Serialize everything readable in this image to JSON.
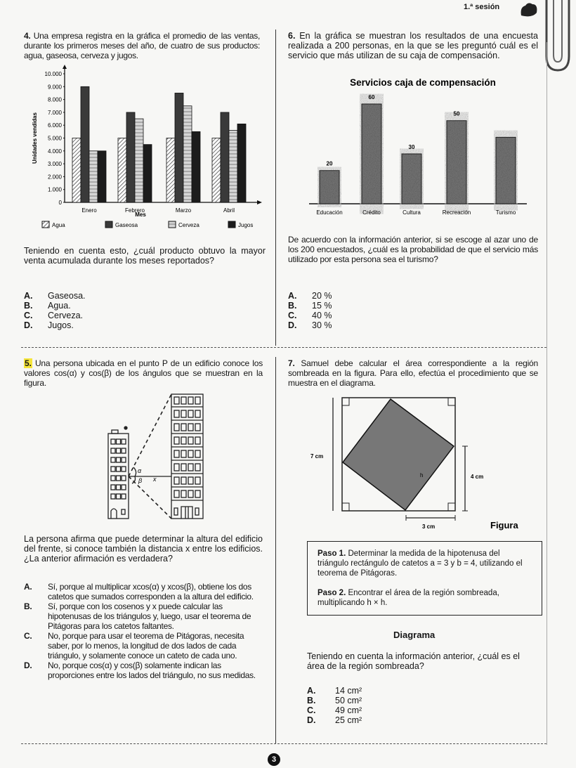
{
  "header": {
    "session": "1.ª sesión",
    "page_number": "3"
  },
  "q4": {
    "number": "4.",
    "stem": "Una empresa registra en la gráfica el promedio de las ventas, durante los primeros meses del año, de cuatro de sus productos: agua, gaseosa, cerveza y jugos.",
    "question": "Teniendo en cuenta esto, ¿cuál producto obtuvo la mayor venta acumulada durante los meses reportados?",
    "options": [
      {
        "letter": "A.",
        "text": "Gaseosa."
      },
      {
        "letter": "B.",
        "text": "Agua."
      },
      {
        "letter": "C.",
        "text": "Cerveza."
      },
      {
        "letter": "D.",
        "text": "Jugos."
      }
    ]
  },
  "q6": {
    "number": "6.",
    "stem": "En la gráfica se muestran los resultados de una encuesta realizada a 200 personas, en la que se les preguntó cuál es el servicio que más utilizan de su caja de compensación.",
    "question": "De acuerdo con la información anterior, si se escoge al azar uno de los 200 encuestados, ¿cuál es la probabilidad de que el servicio más utilizado por esta persona sea el turismo?",
    "options": [
      {
        "letter": "A.",
        "text": "20 %"
      },
      {
        "letter": "B.",
        "text": "15 %"
      },
      {
        "letter": "C.",
        "text": "40 %"
      },
      {
        "letter": "D.",
        "text": "30 %"
      }
    ]
  },
  "q5": {
    "number": "5.",
    "stem": "Una persona ubicada en el punto P de un edificio conoce los valores cos(α) y cos(β) de los ángulos que se muestran en la figura.",
    "figure_labels": {
      "alpha": "α",
      "beta": "β",
      "x": "x"
    },
    "question": "La persona afirma que puede determinar la altura del edificio del frente, si conoce también la distancia x entre los edificios. ¿La anterior afirmación es verdadera?",
    "options": [
      {
        "letter": "A.",
        "text": "Sí, porque al multiplicar xcos(α) y xcos(β), obtiene los dos catetos que sumados corresponden a la altura del edificio."
      },
      {
        "letter": "B.",
        "text": "Sí, porque con los cosenos y x puede calcular las hipotenusas de los triángulos y, luego, usar el teorema de Pitágoras para los catetos faltantes."
      },
      {
        "letter": "C.",
        "text": "No, porque para usar el teorema de Pitágoras, necesita saber, por lo menos, la longitud de dos lados de cada triángulo, y solamente conoce un cateto de cada uno."
      },
      {
        "letter": "D.",
        "text": "No, porque cos(α) y cos(β) solamente indican las proporciones entre los lados del triángulo, no sus medidas."
      }
    ]
  },
  "q7": {
    "number": "7.",
    "stem": "Samuel debe calcular el área correspondiente a la región sombreada en la figura. Para ello, efectúa el procedimiento que se muestra en el diagrama.",
    "figure": {
      "side_label": "7 cm",
      "right_label": "4 cm",
      "bottom_label": "3 cm",
      "h_label": "h",
      "caption": "Figura"
    },
    "diagram": {
      "step1_title": "Paso 1.",
      "step1_text": "Determinar la medida de la hipotenusa del triángulo rectángulo de catetos a = 3 y b = 4, utilizando el teorema de Pitágoras.",
      "step2_title": "Paso 2.",
      "step2_text": "Encontrar el área de la región sombreada, multiplicando h × h.",
      "caption": "Diagrama"
    },
    "question": "Teniendo en cuenta la información anterior, ¿cuál es el área de la región sombreada?",
    "options": [
      {
        "letter": "A.",
        "text": "14 cm²"
      },
      {
        "letter": "B.",
        "text": "50 cm²"
      },
      {
        "letter": "C.",
        "text": "49 cm²"
      },
      {
        "letter": "D.",
        "text": "25 cm²"
      }
    ]
  },
  "chart_data": [
    {
      "type": "bar",
      "title": "",
      "xlabel": "Mes",
      "ylabel": "Unidades vendidas",
      "categories": [
        "Enero",
        "Febrero",
        "Marzo",
        "Abril"
      ],
      "yticks": [
        "0",
        "1.000",
        "2.000",
        "3.000",
        "4.000",
        "5.000",
        "6.000",
        "7.000",
        "8.000",
        "9.000",
        "10.000"
      ],
      "ylim": [
        0,
        10000
      ],
      "grid": false,
      "legend": "bottom",
      "series": [
        {
          "name": "Agua",
          "values": [
            5000,
            5000,
            5000,
            5000
          ],
          "color": "#ffffff",
          "pattern": "diagonal-hatch"
        },
        {
          "name": "Gaseosa",
          "values": [
            9000,
            7000,
            8500,
            7000
          ],
          "color": "#3a3a3a",
          "pattern": "solid"
        },
        {
          "name": "Cerveza",
          "values": [
            4000,
            6500,
            7500,
            5600
          ],
          "color": "#d6d6d6",
          "pattern": "horizontal-lines"
        },
        {
          "name": "Jugos",
          "values": [
            4000,
            4500,
            5500,
            6100
          ],
          "color": "#1c1c1c",
          "pattern": "solid"
        }
      ]
    },
    {
      "type": "bar",
      "title": "Servicios caja de compensación",
      "categories": [
        "Educación",
        "Crédito",
        "Cultura",
        "Recreación",
        "Turismo"
      ],
      "values": [
        20,
        60,
        30,
        50,
        40
      ],
      "data_labels": [
        "20",
        "60",
        "30",
        "50",
        ""
      ],
      "ylim": [
        0,
        60
      ],
      "grid": false,
      "color": "#7a7a7a"
    }
  ]
}
